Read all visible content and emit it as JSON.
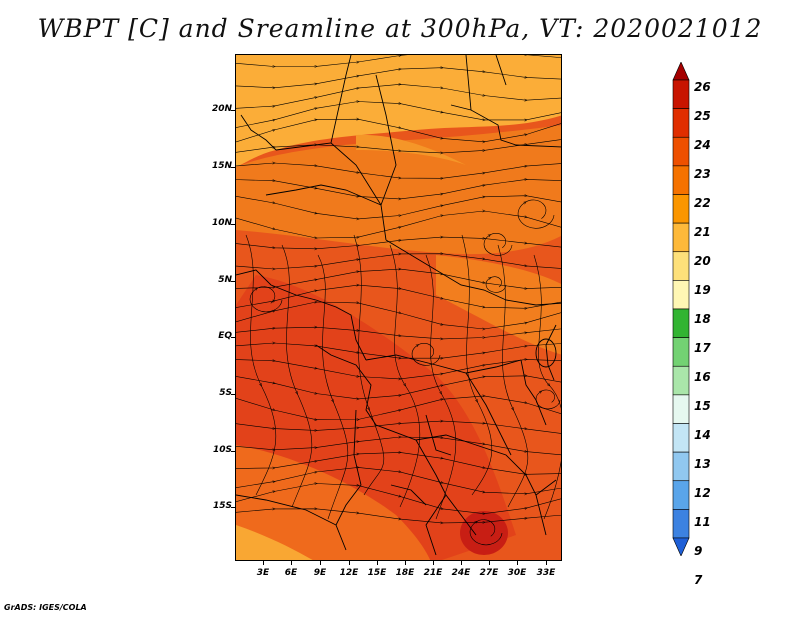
{
  "title": "WBPT [C] and Sreamline at 300hPa, VT: 2020021012",
  "credit": "GrADS: IGES/COLA",
  "map": {
    "lat_labels": [
      "20N",
      "15N",
      "10N",
      "5N",
      "EQ",
      "5S",
      "10S",
      "15S"
    ],
    "lon_labels": [
      "3E",
      "6E",
      "9E",
      "12E",
      "15E",
      "18E",
      "21E",
      "24E",
      "27E",
      "30E",
      "33E"
    ]
  },
  "colorbar": {
    "labels": [
      "26",
      "25",
      "24",
      "23",
      "22",
      "21",
      "20",
      "19",
      "18",
      "17",
      "16",
      "15",
      "14",
      "13",
      "12",
      "11",
      "9",
      "7"
    ],
    "colors": [
      "#a50000",
      "#c81400",
      "#e02e00",
      "#ee5000",
      "#f57200",
      "#fb9600",
      "#fdb93a",
      "#fde07a",
      "#fff7b4",
      "#32b432",
      "#73d273",
      "#aae6aa",
      "#e6f8f0",
      "#c3e5f5",
      "#91c8f0",
      "#5aa5ea",
      "#3c82e1",
      "#1e5fd7"
    ]
  },
  "colors": {
    "field_orange": "#f07818",
    "field_red": "#e2461a",
    "field_amber": "#f9a733",
    "lines": "#000000"
  }
}
